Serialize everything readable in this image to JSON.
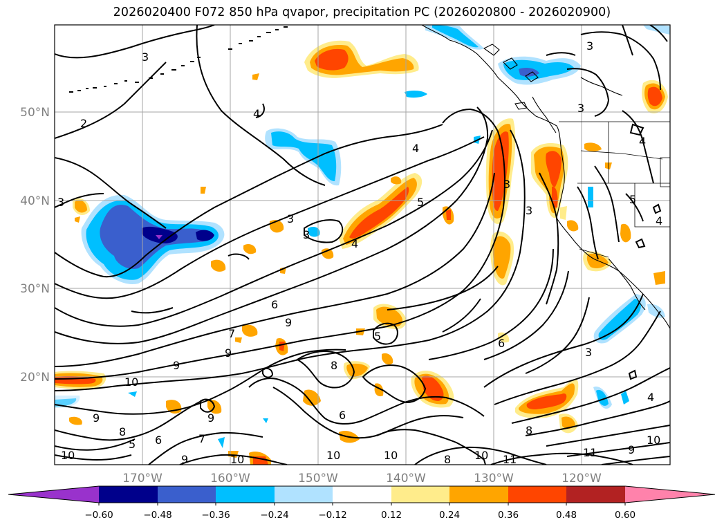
{
  "title": "2026020400 F072 850 hPa qvapor, precipitation PC (2026020800 - 2026020900)",
  "map": {
    "lon_ticks": [
      "170°W",
      "160°W",
      "150°W",
      "140°W",
      "130°W",
      "120°W"
    ],
    "lat_ticks": [
      "50°N",
      "40°N",
      "30°N",
      "20°N"
    ],
    "contour_labels": [
      "3",
      "3",
      "2",
      "4",
      "3",
      "4",
      "5",
      "3",
      "4",
      "3",
      "3",
      "4",
      "5",
      "4",
      "3",
      "3",
      "6",
      "9",
      "7",
      "9",
      "5",
      "6",
      "3",
      "8",
      "9",
      "10",
      "9",
      "8",
      "5",
      "6",
      "7",
      "9",
      "6",
      "10",
      "10",
      "10",
      "8",
      "10",
      "11",
      "11",
      "9",
      "10",
      "4",
      "10",
      "9",
      "8"
    ]
  },
  "colorbar": {
    "tick_labels": [
      "−0.60",
      "−0.48",
      "−0.36",
      "−0.24",
      "−0.12",
      "0.12",
      "0.24",
      "0.36",
      "0.48",
      "0.60"
    ],
    "colors": [
      "#9932cc",
      "#00008b",
      "#3a5fcd",
      "#00bfff",
      "#b0e2ff",
      "#ffffff",
      "#ffec8b",
      "#ffa500",
      "#ff4500",
      "#b22222",
      "#ff82ab"
    ]
  }
}
